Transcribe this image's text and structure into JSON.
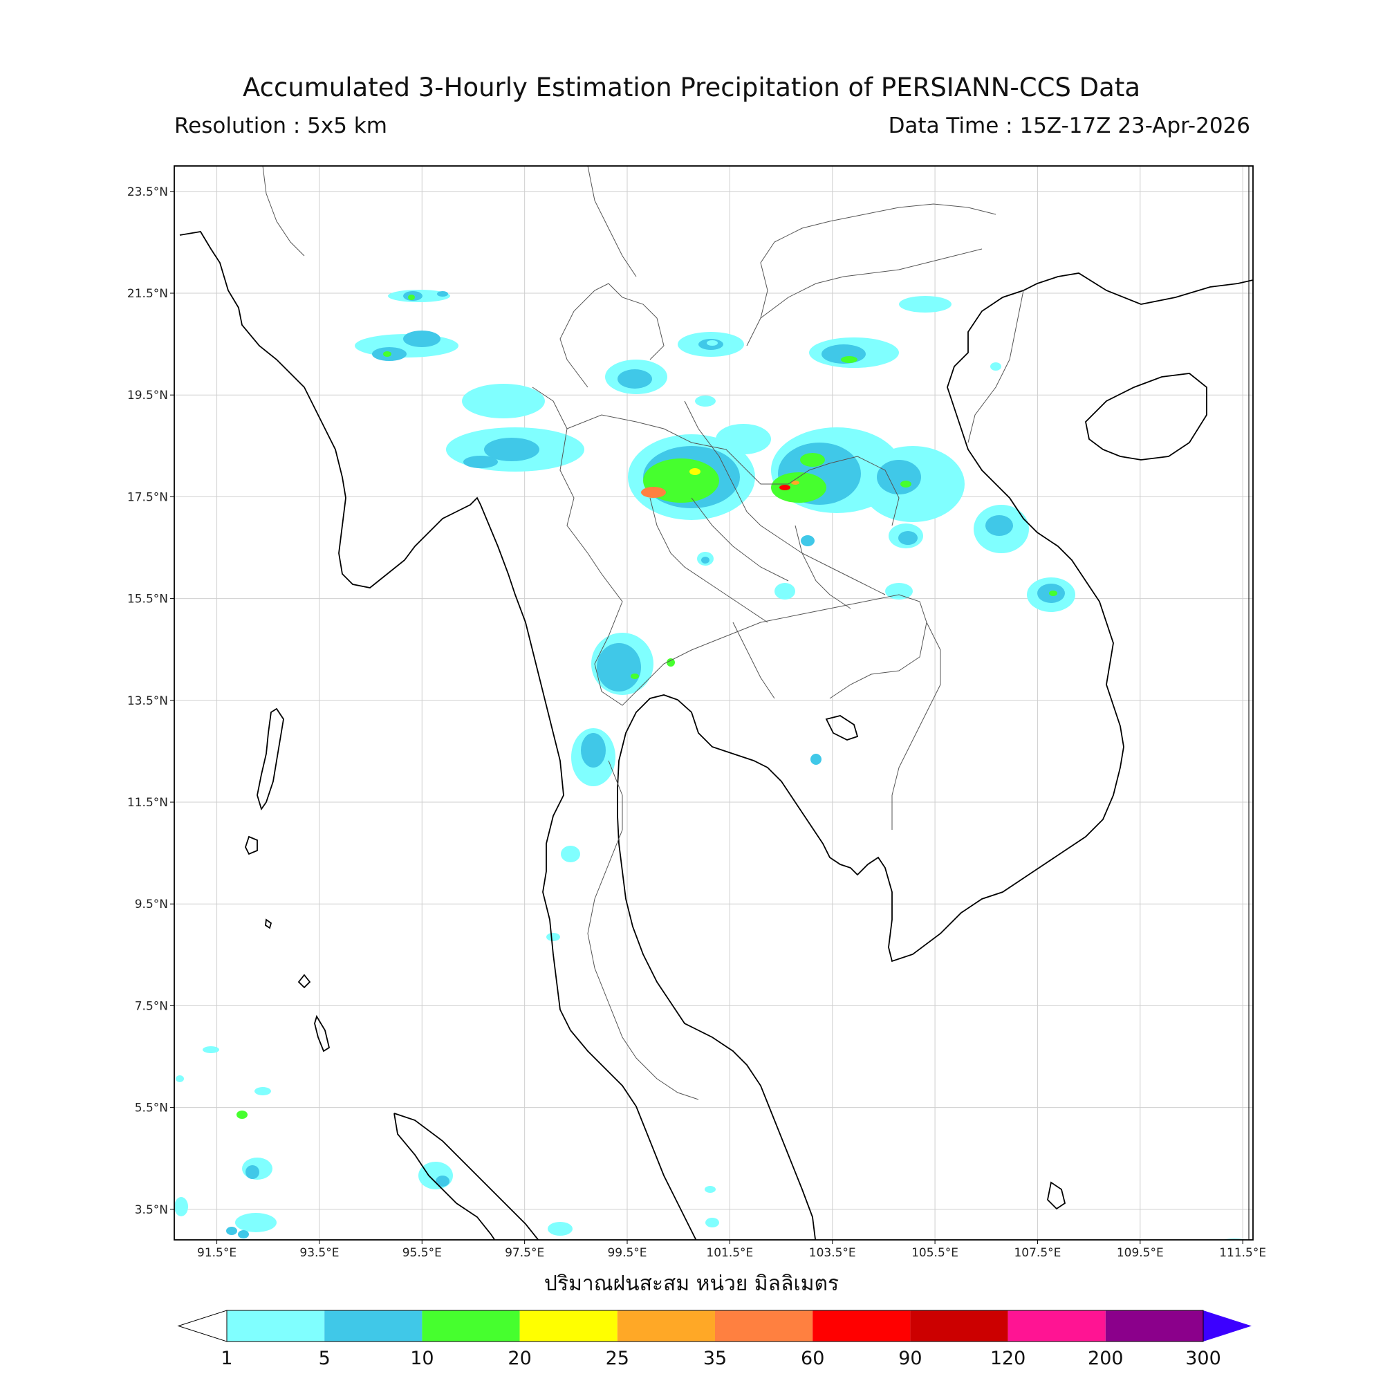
{
  "header": {
    "title": "Accumulated 3-Hourly Estimation Precipitation of PERSIANN-CCS Data",
    "resolution": "Resolution : 5x5 km",
    "data_time": "Data Time : 15Z-17Z 23-Apr-2026"
  },
  "map": {
    "lon_range": [
      90.67,
      111.7
    ],
    "lat_range": [
      2.9,
      24.0
    ],
    "lat_ticks": [
      {
        "value": 23.5,
        "label": "23.5°N"
      },
      {
        "value": 21.5,
        "label": "21.5°N"
      },
      {
        "value": 19.5,
        "label": "19.5°N"
      },
      {
        "value": 17.5,
        "label": "17.5°N"
      },
      {
        "value": 15.5,
        "label": "15.5°N"
      },
      {
        "value": 13.5,
        "label": "13.5°N"
      },
      {
        "value": 11.5,
        "label": "11.5°N"
      },
      {
        "value": 9.5,
        "label": "9.5°N"
      },
      {
        "value": 7.5,
        "label": "7.5°N"
      },
      {
        "value": 5.5,
        "label": "5.5°N"
      },
      {
        "value": 3.5,
        "label": "3.5°N"
      }
    ],
    "lon_ticks": [
      {
        "value": 91.5,
        "label": "91.5°E"
      },
      {
        "value": 93.5,
        "label": "93.5°E"
      },
      {
        "value": 95.5,
        "label": "95.5°E"
      },
      {
        "value": 97.5,
        "label": "97.5°E"
      },
      {
        "value": 99.5,
        "label": "99.5°E"
      },
      {
        "value": 101.5,
        "label": "101.5°E"
      },
      {
        "value": 103.5,
        "label": "103.5°E"
      },
      {
        "value": 105.5,
        "label": "105.5°E"
      },
      {
        "value": 107.5,
        "label": "107.5°E"
      },
      {
        "value": 109.5,
        "label": "109.5°E"
      },
      {
        "value": 111.5,
        "label": "111.5°E"
      }
    ],
    "grid": true
  },
  "colorbar": {
    "unit_label": "ปริมาณฝนสะสม หน่วย มิลลิเมตร",
    "levels": [
      "1",
      "5",
      "10",
      "20",
      "25",
      "35",
      "60",
      "90",
      "120",
      "200",
      "300"
    ],
    "colors": [
      "#80ffff",
      "#40c8e8",
      "#46ff2e",
      "#ffff00",
      "#ffa826",
      "#ff8040",
      "#ff0000",
      "#cc0000",
      "#ff1493",
      "#8b008b"
    ],
    "under_color": "#ffffff",
    "over_color": "#3c00ff"
  },
  "rain_colors": {
    "light": "#80ffff",
    "moderate": "#40c8e8",
    "heavy": "#46ff2e",
    "very_heavy": "#ff8040",
    "extreme": "#ff0000"
  }
}
